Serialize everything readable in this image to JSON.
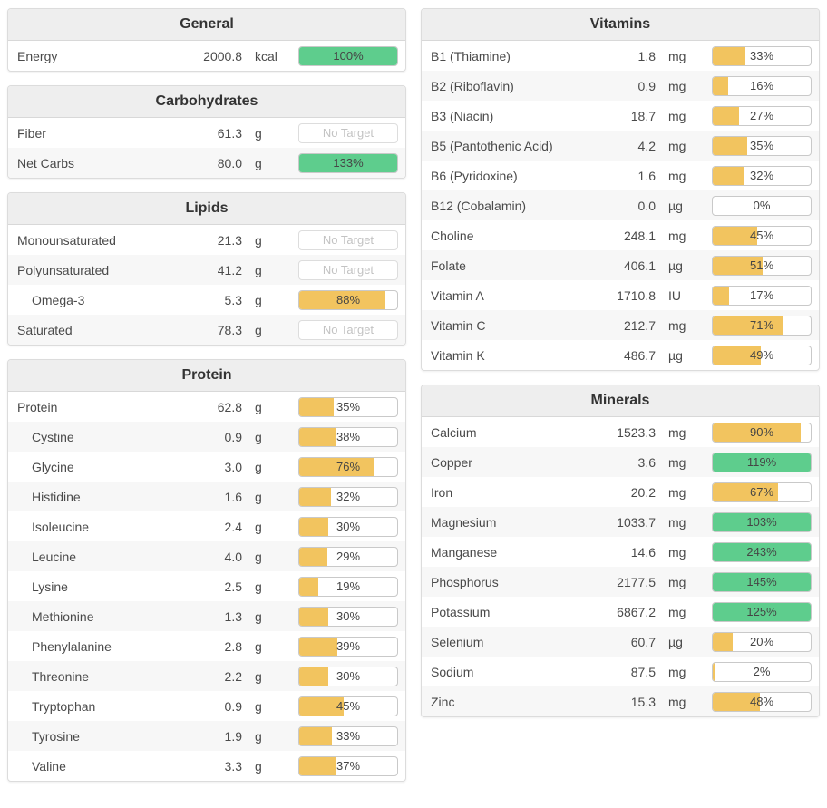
{
  "labels": {
    "no_target": "No Target"
  },
  "colors": {
    "over_target_green": "#5ecd8d",
    "under_target_yellow": "#f2c45f",
    "header_bg": "#eeeeee",
    "zebra_row": "#f7f7f7"
  },
  "panels": [
    {
      "title": "General",
      "column": "left",
      "rows": [
        {
          "name": "Energy",
          "indent": false,
          "amount": "2000.8",
          "unit": "kcal",
          "percent": 100,
          "label": "100%"
        }
      ]
    },
    {
      "title": "Carbohydrates",
      "column": "left",
      "rows": [
        {
          "name": "Fiber",
          "indent": false,
          "amount": "61.3",
          "unit": "g",
          "percent": null,
          "label": "No Target"
        },
        {
          "name": "Net Carbs",
          "indent": false,
          "amount": "80.0",
          "unit": "g",
          "percent": 133,
          "label": "133%"
        }
      ]
    },
    {
      "title": "Lipids",
      "column": "left",
      "rows": [
        {
          "name": "Monounsaturated",
          "indent": false,
          "amount": "21.3",
          "unit": "g",
          "percent": null,
          "label": "No Target"
        },
        {
          "name": "Polyunsaturated",
          "indent": false,
          "amount": "41.2",
          "unit": "g",
          "percent": null,
          "label": "No Target"
        },
        {
          "name": "Omega-3",
          "indent": true,
          "amount": "5.3",
          "unit": "g",
          "percent": 88,
          "label": "88%"
        },
        {
          "name": "Saturated",
          "indent": false,
          "amount": "78.3",
          "unit": "g",
          "percent": null,
          "label": "No Target"
        }
      ]
    },
    {
      "title": "Protein",
      "column": "left",
      "rows": [
        {
          "name": "Protein",
          "indent": false,
          "amount": "62.8",
          "unit": "g",
          "percent": 35,
          "label": "35%"
        },
        {
          "name": "Cystine",
          "indent": true,
          "amount": "0.9",
          "unit": "g",
          "percent": 38,
          "label": "38%"
        },
        {
          "name": "Glycine",
          "indent": true,
          "amount": "3.0",
          "unit": "g",
          "percent": 76,
          "label": "76%"
        },
        {
          "name": "Histidine",
          "indent": true,
          "amount": "1.6",
          "unit": "g",
          "percent": 32,
          "label": "32%"
        },
        {
          "name": "Isoleucine",
          "indent": true,
          "amount": "2.4",
          "unit": "g",
          "percent": 30,
          "label": "30%"
        },
        {
          "name": "Leucine",
          "indent": true,
          "amount": "4.0",
          "unit": "g",
          "percent": 29,
          "label": "29%"
        },
        {
          "name": "Lysine",
          "indent": true,
          "amount": "2.5",
          "unit": "g",
          "percent": 19,
          "label": "19%"
        },
        {
          "name": "Methionine",
          "indent": true,
          "amount": "1.3",
          "unit": "g",
          "percent": 30,
          "label": "30%"
        },
        {
          "name": "Phenylalanine",
          "indent": true,
          "amount": "2.8",
          "unit": "g",
          "percent": 39,
          "label": "39%"
        },
        {
          "name": "Threonine",
          "indent": true,
          "amount": "2.2",
          "unit": "g",
          "percent": 30,
          "label": "30%"
        },
        {
          "name": "Tryptophan",
          "indent": true,
          "amount": "0.9",
          "unit": "g",
          "percent": 45,
          "label": "45%"
        },
        {
          "name": "Tyrosine",
          "indent": true,
          "amount": "1.9",
          "unit": "g",
          "percent": 33,
          "label": "33%"
        },
        {
          "name": "Valine",
          "indent": true,
          "amount": "3.3",
          "unit": "g",
          "percent": 37,
          "label": "37%"
        }
      ]
    },
    {
      "title": "Vitamins",
      "column": "right",
      "rows": [
        {
          "name": "B1 (Thiamine)",
          "indent": false,
          "amount": "1.8",
          "unit": "mg",
          "percent": 33,
          "label": "33%"
        },
        {
          "name": "B2 (Riboflavin)",
          "indent": false,
          "amount": "0.9",
          "unit": "mg",
          "percent": 16,
          "label": "16%"
        },
        {
          "name": "B3 (Niacin)",
          "indent": false,
          "amount": "18.7",
          "unit": "mg",
          "percent": 27,
          "label": "27%"
        },
        {
          "name": "B5 (Pantothenic Acid)",
          "indent": false,
          "amount": "4.2",
          "unit": "mg",
          "percent": 35,
          "label": "35%"
        },
        {
          "name": "B6 (Pyridoxine)",
          "indent": false,
          "amount": "1.6",
          "unit": "mg",
          "percent": 32,
          "label": "32%"
        },
        {
          "name": "B12 (Cobalamin)",
          "indent": false,
          "amount": "0.0",
          "unit": "µg",
          "percent": 0,
          "label": "0%"
        },
        {
          "name": "Choline",
          "indent": false,
          "amount": "248.1",
          "unit": "mg",
          "percent": 45,
          "label": "45%"
        },
        {
          "name": "Folate",
          "indent": false,
          "amount": "406.1",
          "unit": "µg",
          "percent": 51,
          "label": "51%"
        },
        {
          "name": "Vitamin A",
          "indent": false,
          "amount": "1710.8",
          "unit": "IU",
          "percent": 17,
          "label": "17%"
        },
        {
          "name": "Vitamin C",
          "indent": false,
          "amount": "212.7",
          "unit": "mg",
          "percent": 71,
          "label": "71%"
        },
        {
          "name": "Vitamin K",
          "indent": false,
          "amount": "486.7",
          "unit": "µg",
          "percent": 49,
          "label": "49%"
        }
      ]
    },
    {
      "title": "Minerals",
      "column": "right",
      "rows": [
        {
          "name": "Calcium",
          "indent": false,
          "amount": "1523.3",
          "unit": "mg",
          "percent": 90,
          "label": "90%"
        },
        {
          "name": "Copper",
          "indent": false,
          "amount": "3.6",
          "unit": "mg",
          "percent": 119,
          "label": "119%"
        },
        {
          "name": "Iron",
          "indent": false,
          "amount": "20.2",
          "unit": "mg",
          "percent": 67,
          "label": "67%"
        },
        {
          "name": "Magnesium",
          "indent": false,
          "amount": "1033.7",
          "unit": "mg",
          "percent": 103,
          "label": "103%"
        },
        {
          "name": "Manganese",
          "indent": false,
          "amount": "14.6",
          "unit": "mg",
          "percent": 243,
          "label": "243%"
        },
        {
          "name": "Phosphorus",
          "indent": false,
          "amount": "2177.5",
          "unit": "mg",
          "percent": 145,
          "label": "145%"
        },
        {
          "name": "Potassium",
          "indent": false,
          "amount": "6867.2",
          "unit": "mg",
          "percent": 125,
          "label": "125%"
        },
        {
          "name": "Selenium",
          "indent": false,
          "amount": "60.7",
          "unit": "µg",
          "percent": 20,
          "label": "20%"
        },
        {
          "name": "Sodium",
          "indent": false,
          "amount": "87.5",
          "unit": "mg",
          "percent": 2,
          "label": "2%"
        },
        {
          "name": "Zinc",
          "indent": false,
          "amount": "15.3",
          "unit": "mg",
          "percent": 48,
          "label": "48%"
        }
      ]
    }
  ]
}
